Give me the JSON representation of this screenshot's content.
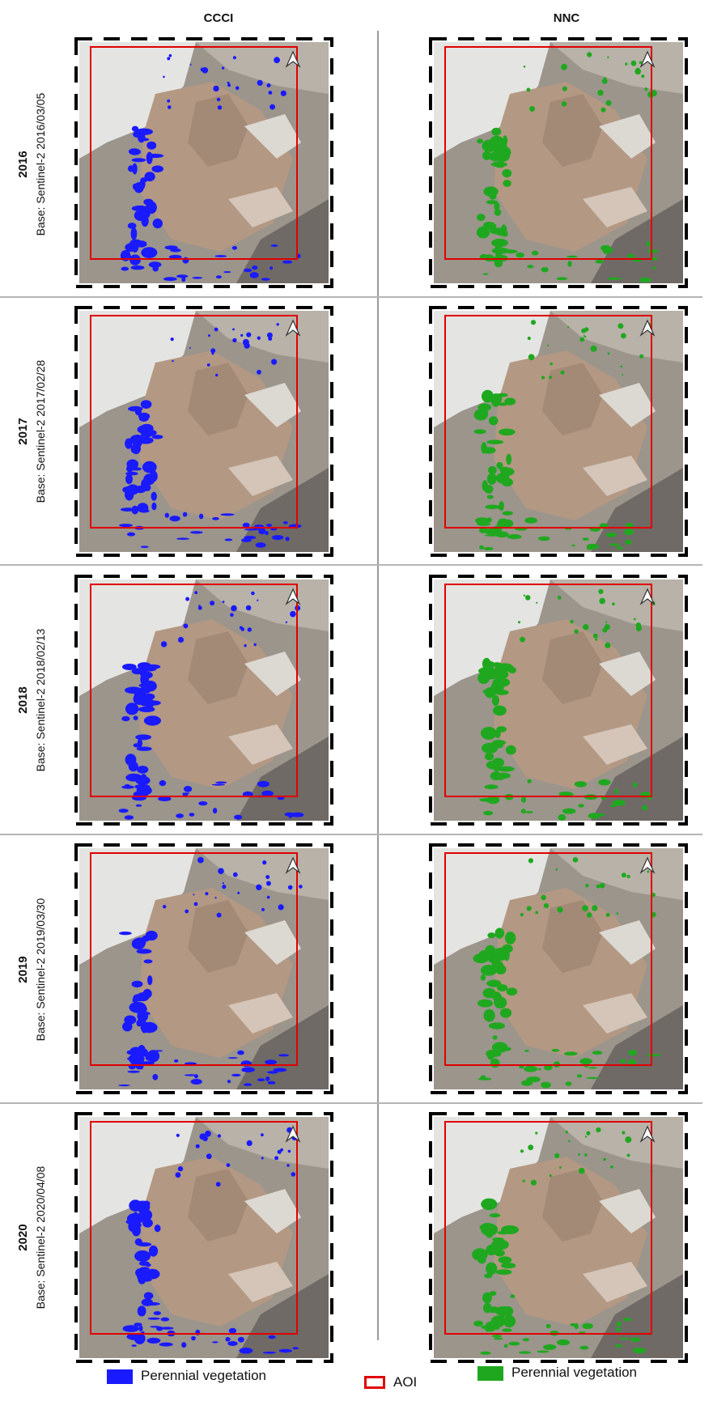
{
  "columns": [
    "CCCI",
    "NNC"
  ],
  "rows": [
    {
      "year": "2016",
      "base": "Base: Sentinel-2 2016/03/05"
    },
    {
      "year": "2017",
      "base": "Base: Sentinel-2 2017/02/28"
    },
    {
      "year": "2018",
      "base": "Base: Sentinel-2 2018/02/13"
    },
    {
      "year": "2019",
      "base": "Base: Sentinel-2 2019/03/30"
    },
    {
      "year": "2020",
      "base": "Base: Sentinel-2 2020/04/08"
    }
  ],
  "legend": {
    "ccci_label": "Perennial vegetation",
    "aoi_label": "AOI",
    "nnc_label": "Perennial vegetation"
  },
  "colors": {
    "ccci_vegetation": "#1a1aff",
    "nnc_vegetation": "#1fa81f",
    "aoi": "#e00000"
  }
}
